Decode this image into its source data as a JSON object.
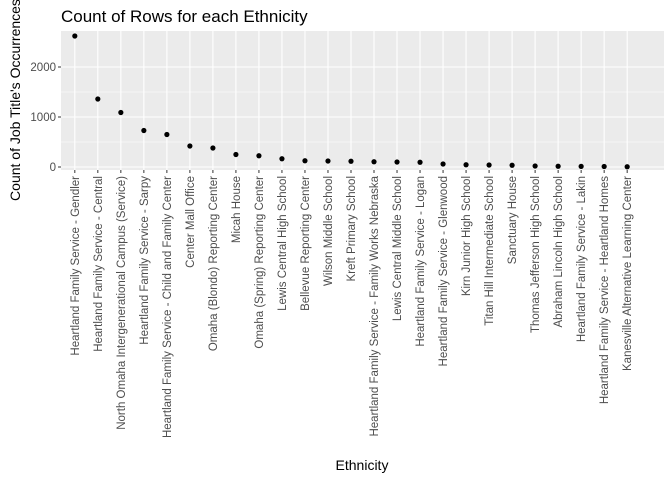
{
  "chart_data": {
    "type": "scatter",
    "title": "Count of Rows for each Ethnicity",
    "xlabel": "Ethnicity",
    "ylabel": "Count of Job Title's Occurrences",
    "ylim": [
      -60,
      2720
    ],
    "yticks": [
      0,
      1000,
      2000
    ],
    "ytick_labels": [
      "0",
      "1000",
      "2000"
    ],
    "grid": true,
    "legend": "none",
    "colors": {
      "panel": "#ebebeb",
      "grid": "#ffffff",
      "point": "#000000",
      "tick": "#333333"
    },
    "categories": [
      "Heartland Family Service - Gendler",
      "Heartland Family Service - Central",
      "North Omaha Intergenerational Campus (Service)",
      "Heartland Family Service - Sarpy",
      "Heartland Family Service - Child and Family Center",
      "Center Mall Office",
      "Omaha (Blondo) Reporting Center",
      "Micah House",
      "Omaha (Spring) Reporting Center",
      "Lewis Central High School",
      "Bellevue Reporting Center",
      "Wilson Middle School",
      "Kreft Primary School",
      "Heartland Family Service - Family Works Nebraska",
      "Lewis Central Middle School",
      "Heartland Family Service - Logan",
      "Heartland Family Service - Glenwood",
      "Kirn Junior High  School",
      "Titan Hill Intermediate School",
      "Sanctuary House",
      "Thomas Jefferson High School",
      "Abraham Lincoln High School",
      "Heartland Family Service - Lakin",
      "Heartland Family Service - Heartland Homes",
      "Kanesville Alternative Learning Center"
    ],
    "values": [
      2620,
      1360,
      1090,
      730,
      650,
      420,
      380,
      250,
      225,
      165,
      125,
      120,
      115,
      105,
      100,
      95,
      60,
      45,
      40,
      35,
      20,
      15,
      12,
      10,
      5
    ]
  }
}
